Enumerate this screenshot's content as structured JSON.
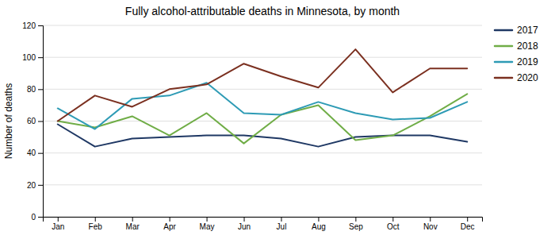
{
  "chart_data": {
    "type": "line",
    "title": "Fully alcohol-attributable deaths in Minnesota, by month",
    "ylabel": "Number of deaths",
    "categories": [
      "Jan",
      "Feb",
      "Mar",
      "Apr",
      "May",
      "Jun",
      "Jul",
      "Aug",
      "Sep",
      "Oct",
      "Nov",
      "Dec"
    ],
    "series": [
      {
        "name": "2017",
        "color": "#1f3864",
        "values": [
          58,
          44,
          49,
          50,
          51,
          51,
          49,
          44,
          50,
          51,
          51,
          47
        ]
      },
      {
        "name": "2018",
        "color": "#70ad47",
        "values": [
          60,
          56,
          63,
          51,
          65,
          46,
          64,
          70,
          48,
          51,
          63,
          77
        ]
      },
      {
        "name": "2019",
        "color": "#2e9bb5",
        "values": [
          68,
          55,
          74,
          76,
          84,
          65,
          64,
          72,
          65,
          61,
          62,
          72
        ]
      },
      {
        "name": "2020",
        "color": "#7b3020",
        "values": [
          60,
          76,
          69,
          80,
          83,
          96,
          88,
          81,
          105,
          78,
          93,
          93
        ]
      }
    ],
    "ylim": [
      0,
      120
    ],
    "yticks": [
      0,
      20,
      40,
      60,
      80,
      100,
      120
    ],
    "grid": true,
    "legend": "right"
  }
}
